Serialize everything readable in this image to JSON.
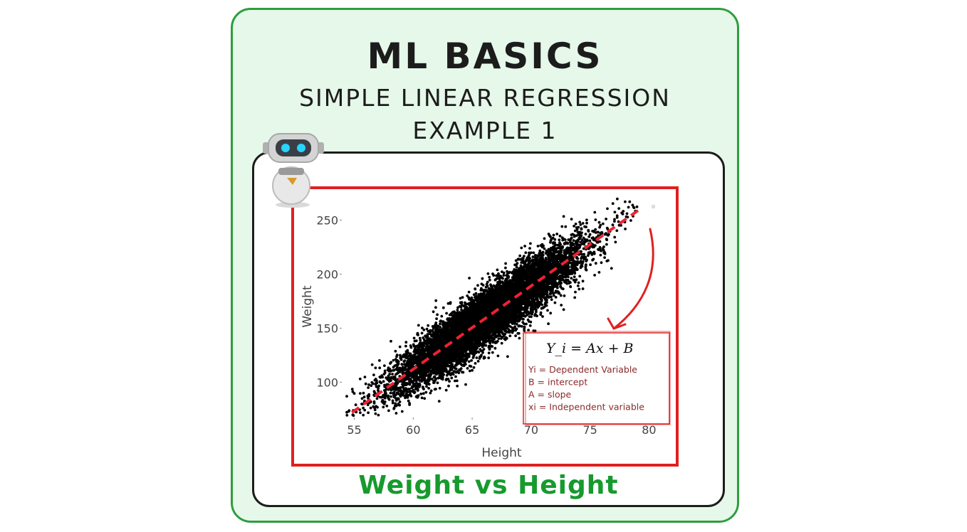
{
  "title": {
    "main": "ML BASICS",
    "sub": "SIMPLE LINEAR REGRESSION",
    "sub2": "EXAMPLE 1"
  },
  "caption": "Weight vs Height",
  "colors": {
    "outer_border": "#2e9e3e",
    "outer_fill": "#e6f8e9",
    "frame": "#e02020",
    "regression_line": "#ee2233",
    "points": "#000000",
    "caption": "#169a2e",
    "legend_text": "#8a2a2a"
  },
  "icons": [
    "robot-icon",
    "curved-arrow-icon"
  ],
  "chart_data": {
    "type": "scatter",
    "title": "",
    "xlabel": "Height",
    "ylabel": "Weight",
    "xlim": [
      54,
      81
    ],
    "ylim": [
      68,
      272
    ],
    "xticks": [
      55,
      60,
      65,
      70,
      75,
      80
    ],
    "yticks": [
      100,
      150,
      200,
      250
    ],
    "grid": false,
    "series": [
      {
        "kind": "points",
        "x_mean": 66.4,
        "x_sd": 3.85,
        "x_range": [
          54.3,
          79.0
        ],
        "y_mean": 161.4,
        "y_sd": 32.1,
        "correlation": 0.92,
        "approx_count": 10000
      }
    ],
    "regression_line": {
      "slope": 7.7,
      "intercept": -350,
      "x_range": [
        54.8,
        79.2
      ],
      "style": "dashed"
    },
    "annotation": {
      "equation": "Y_i = Ax + B",
      "lines": [
        "Yi = Dependent Variable",
        "B = intercept",
        "A = slope",
        "xi = Independent variable"
      ]
    }
  }
}
